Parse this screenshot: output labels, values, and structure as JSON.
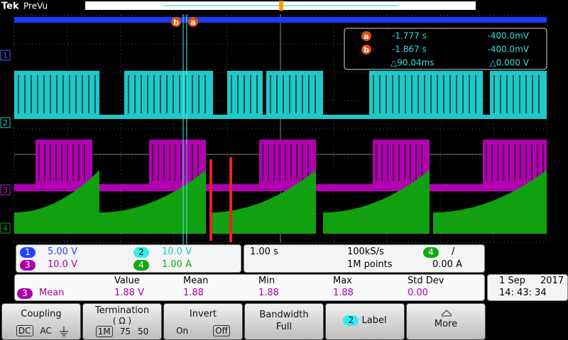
{
  "header": {
    "brand": "Tek",
    "mode": "PreVu"
  },
  "cursors": {
    "a": {
      "marker": "a",
      "time": "-1.777 s",
      "level": "-400.0mV"
    },
    "b": {
      "marker": "b",
      "time": "-1.867 s",
      "level": "-400.0mV"
    },
    "delta": {
      "time": "△90.04ms",
      "level": "△0.000 V"
    }
  },
  "channel_markers": [
    "1",
    "2",
    "3",
    "4"
  ],
  "channels": [
    {
      "number": "1",
      "scale": "5.00 V"
    },
    {
      "number": "2",
      "scale": "10.0 V"
    },
    {
      "number": "3",
      "scale": "10.0 V"
    },
    {
      "number": "4",
      "scale": "1.00 A"
    }
  ],
  "timebase": {
    "scale": "1.00 s",
    "sample_rate": "100kS/s",
    "record_length": "1M points",
    "trigger_source": "4",
    "trigger_slope": "/",
    "trigger_level": "0.00 A"
  },
  "measurements": {
    "headers": [
      "Value",
      "Mean",
      "Min",
      "Max",
      "Std Dev"
    ],
    "row": {
      "source": "3",
      "type": "Mean",
      "values": [
        "1.88 V",
        "1.88",
        "1.88",
        "1.88",
        "0.00"
      ]
    }
  },
  "datetime": {
    "date": "1 Sep",
    "year": "2017",
    "time": "14: 43: 34"
  },
  "menu": [
    {
      "title": "Coupling",
      "options": [
        "DC",
        "AC"
      ]
    },
    {
      "title": "Termination",
      "subtitle": "( Ω )",
      "options": [
        "1M",
        "75",
        "50"
      ]
    },
    {
      "title": "Invert",
      "options": [
        "On",
        "Off"
      ]
    },
    {
      "title": "Bandwidth",
      "value": "Full"
    },
    {
      "badge": "2",
      "title": "Label"
    },
    {
      "title": "More"
    }
  ]
}
